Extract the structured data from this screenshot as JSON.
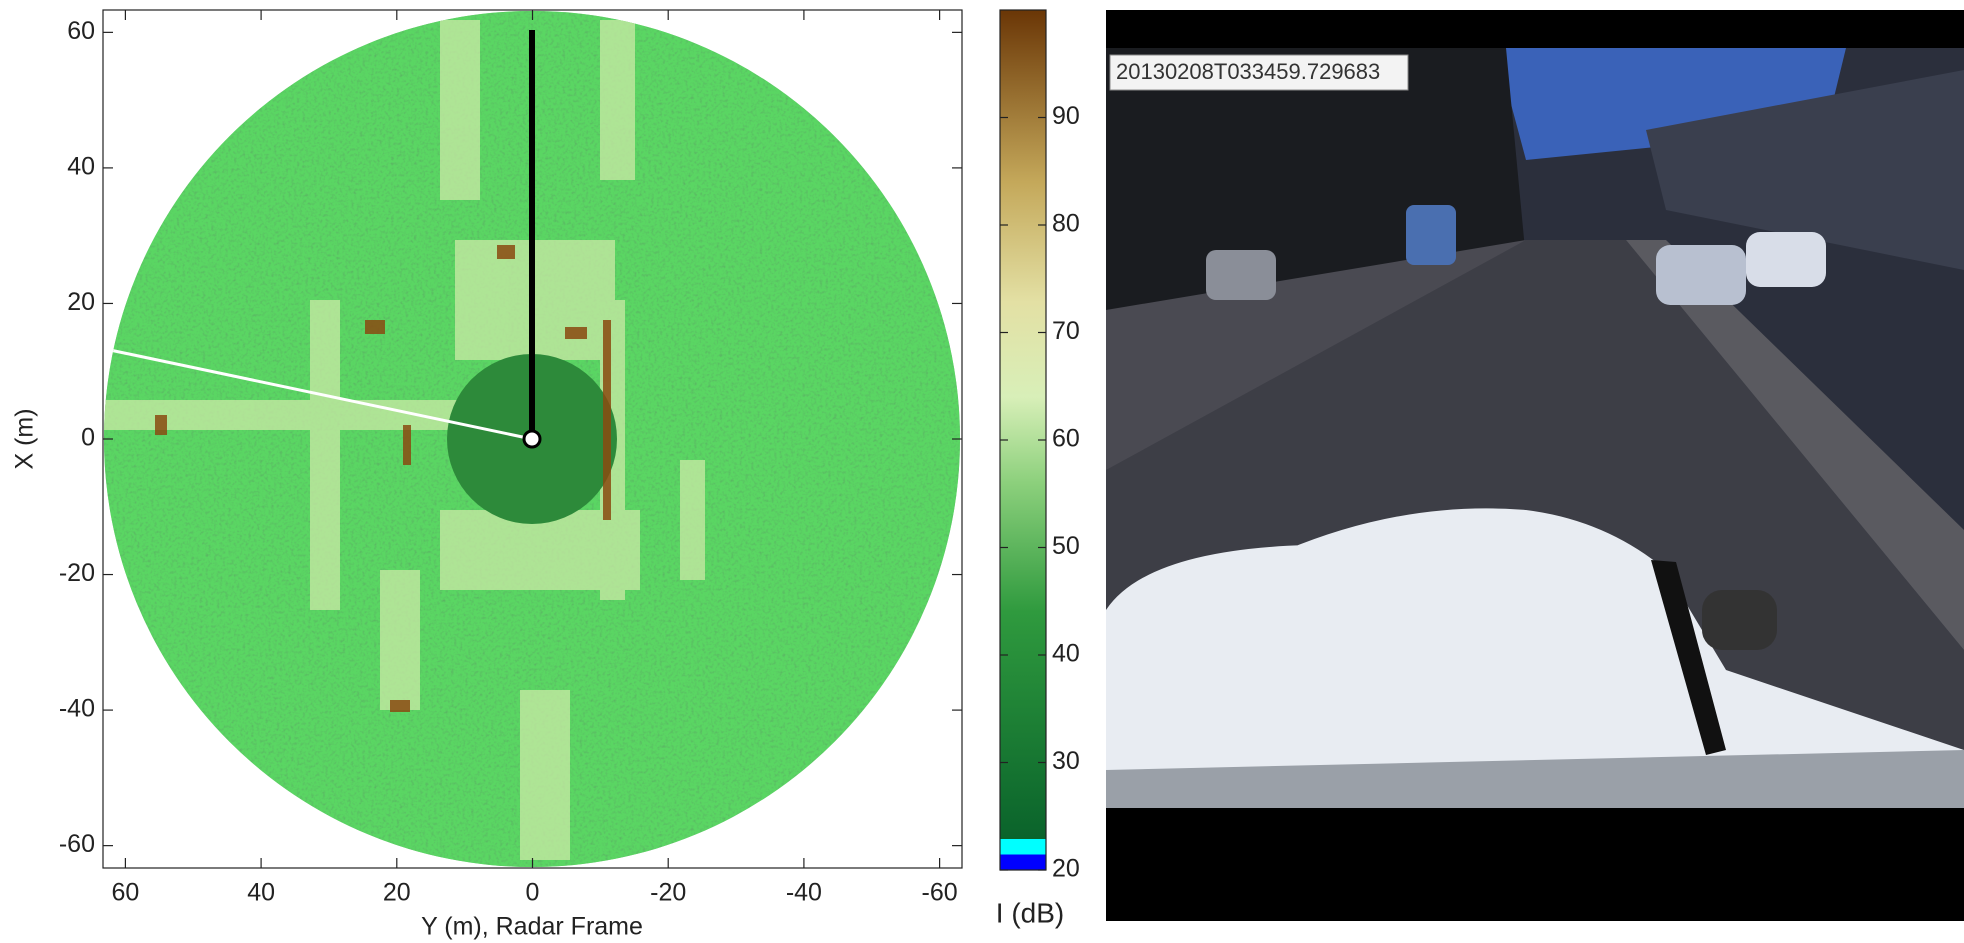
{
  "chart_data": [
    {
      "type": "heatmap",
      "x_label": "Y (m), Radar Frame",
      "y_label": "X (m)",
      "xlim": [
        63.3,
        -63.3
      ],
      "ylim": [
        -63.3,
        63.3
      ],
      "xticks": [
        60,
        40,
        20,
        0,
        -20,
        -40,
        -60
      ],
      "yticks": [
        60,
        40,
        20,
        0,
        -20,
        -40,
        -60
      ]
    },
    {
      "type": "colorbar",
      "label": "I (dB)",
      "ylim": [
        20,
        100
      ],
      "yticks": [
        20,
        30,
        40,
        50,
        60,
        70,
        80,
        90
      ]
    }
  ],
  "camera": {
    "timestamp": "20130208T033459.729683"
  }
}
